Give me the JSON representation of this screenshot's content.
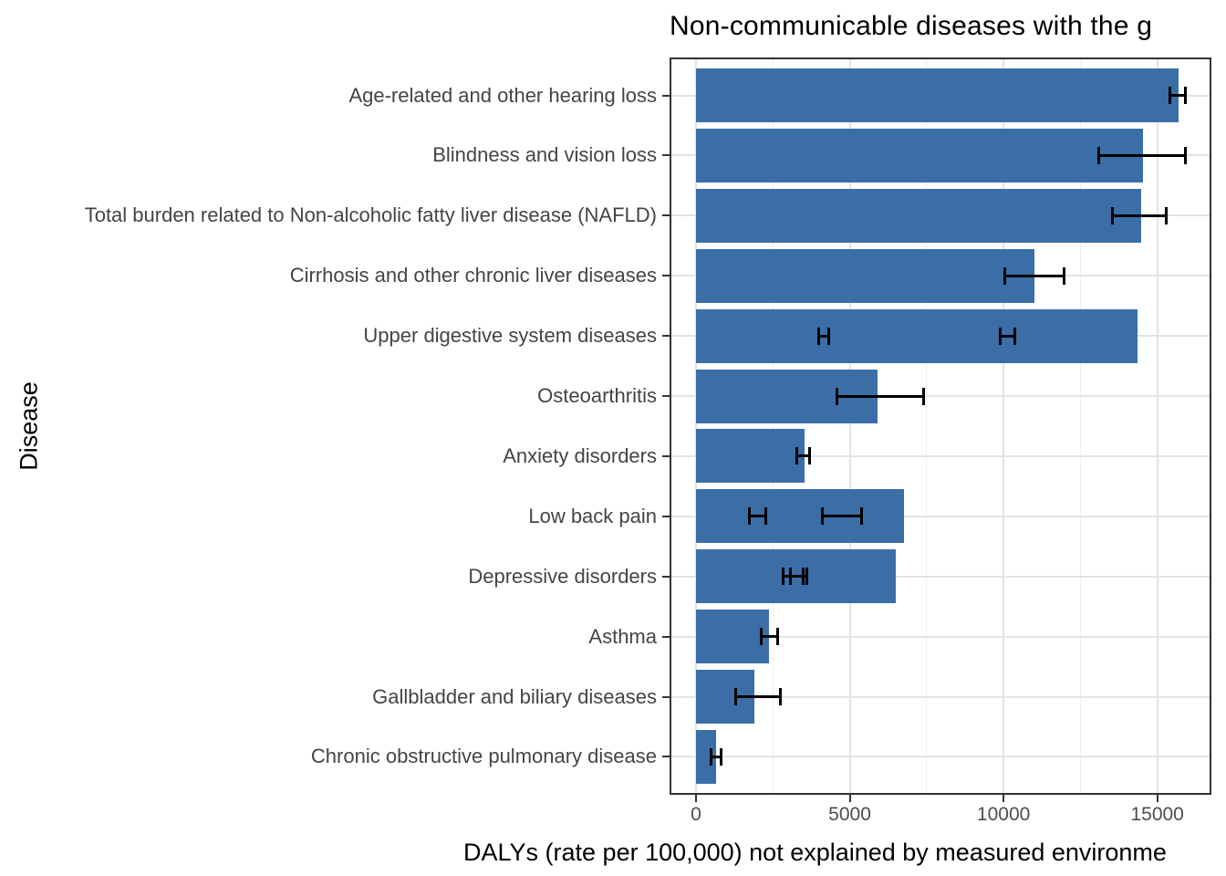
{
  "figure": {
    "title": "Non-communicable diseases with the g",
    "x_axis_label": "DALYs (rate per 100,000) not explained by measured environme",
    "y_axis_label": "Disease"
  },
  "chart_data": {
    "type": "bar",
    "orientation": "horizontal",
    "title": "Non-communicable diseases with the g",
    "xlabel": "DALYs (rate per 100,000) not explained by measured environme",
    "ylabel": "Disease",
    "xlim": [
      -800,
      16700
    ],
    "grid": true,
    "legend": "none",
    "x_ticks": [
      0,
      5000,
      10000,
      15000
    ],
    "x_tick_labels": [
      "0",
      "5000",
      "10000",
      "15000"
    ],
    "x_minor_gridlines": [
      2500,
      7500,
      12500
    ],
    "categories": [
      "Age-related and other hearing loss",
      "Blindness and vision loss",
      "Total burden related to Non-alcoholic fatty liver disease (NAFLD)",
      "Cirrhosis and other chronic liver diseases",
      "Upper digestive system diseases",
      "Osteoarthritis",
      "Anxiety disorders",
      "Low back pain",
      "Depressive disorders",
      "Asthma",
      "Gallbladder and biliary diseases",
      "Chronic obstructive pulmonary disease"
    ],
    "values": [
      15680,
      14530,
      14470,
      11000,
      14350,
      5910,
      3530,
      6760,
      6500,
      2380,
      1910,
      650
    ],
    "error_bars": [
      [
        [
          15400,
          15900
        ]
      ],
      [
        [
          13100,
          15900
        ]
      ],
      [
        [
          13550,
          15300
        ]
      ],
      [
        [
          10030,
          11970
        ]
      ],
      [
        [
          4000,
          4320
        ],
        [
          9900,
          10380
        ]
      ],
      [
        [
          4590,
          7410
        ]
      ],
      [
        [
          3290,
          3680
        ]
      ],
      [
        [
          1740,
          2260
        ],
        [
          4120,
          5380
        ]
      ],
      [
        [
          2820,
          3500
        ],
        [
          3060,
          3590
        ]
      ],
      [
        [
          2120,
          2650
        ]
      ],
      [
        [
          1290,
          2740
        ]
      ],
      [
        [
          500,
          820
        ]
      ]
    ],
    "colors": {
      "bar_fill": "#3b6ea7",
      "error_bar": "#000000",
      "grid_major": "#e3e3e3",
      "grid_minor": "#efefef",
      "panel_border": "#333333",
      "axis_text": "#4d4d4d",
      "title_text": "#000000"
    }
  }
}
